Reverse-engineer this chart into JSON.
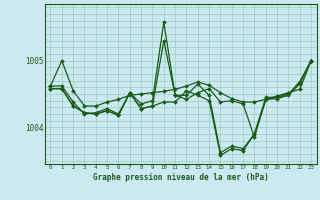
{
  "title": "Graphe pression niveau de la mer (hPa)",
  "background_color": "#cce8f0",
  "plot_bg_color": "#cce8f0",
  "grid_color": "#99ccbb",
  "line_color": "#1a5c1a",
  "marker_color": "#1a5c1a",
  "xlim": [
    -0.5,
    23.5
  ],
  "ylim": [
    1003.45,
    1005.85
  ],
  "yticks": [
    1004,
    1005
  ],
  "xticks": [
    0,
    1,
    2,
    3,
    4,
    5,
    6,
    7,
    8,
    9,
    10,
    11,
    12,
    13,
    14,
    15,
    16,
    17,
    18,
    19,
    20,
    21,
    22,
    23
  ],
  "series": [
    [
      1004.62,
      1005.0,
      1004.55,
      1004.32,
      1004.32,
      1004.38,
      1004.42,
      1004.48,
      1004.5,
      1004.52,
      1004.54,
      1004.57,
      1004.62,
      1004.68,
      1004.63,
      1004.52,
      1004.43,
      1004.38,
      1004.38,
      1004.42,
      1004.47,
      1004.52,
      1004.57,
      1005.0
    ],
    [
      1004.62,
      1004.62,
      1004.38,
      1004.2,
      1004.22,
      1004.28,
      1004.2,
      1004.52,
      1004.35,
      1004.4,
      1005.58,
      1004.48,
      1004.42,
      1004.52,
      1004.58,
      1004.38,
      1004.4,
      1004.35,
      1003.85,
      1004.42,
      1004.45,
      1004.5,
      1004.68,
      1005.0
    ],
    [
      1004.58,
      1004.58,
      1004.32,
      1004.22,
      1004.2,
      1004.25,
      1004.18,
      1004.52,
      1004.28,
      1004.32,
      1004.38,
      1004.38,
      1004.55,
      1004.48,
      1004.4,
      1003.58,
      1003.68,
      1003.65,
      1003.9,
      1004.42,
      1004.43,
      1004.48,
      1004.65,
      1005.0
    ],
    [
      1004.58,
      1004.58,
      1004.32,
      1004.22,
      1004.2,
      1004.25,
      1004.18,
      1004.52,
      1004.28,
      1004.32,
      1005.3,
      1004.48,
      1004.48,
      1004.65,
      1004.48,
      1003.62,
      1003.72,
      1003.68,
      1003.9,
      1004.45,
      1004.45,
      1004.5,
      1004.68,
      1005.0
    ]
  ]
}
